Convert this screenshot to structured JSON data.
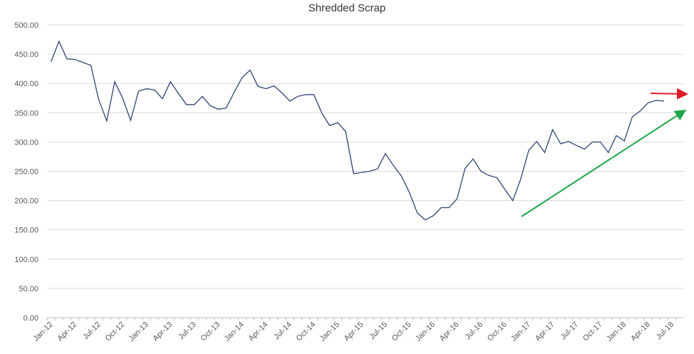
{
  "chart_data": {
    "type": "line",
    "title": "Shredded Scrap",
    "categories": [
      "Jan-12",
      null,
      null,
      "Apr-12",
      null,
      null,
      "Jul-12",
      null,
      null,
      "Oct-12",
      null,
      null,
      "Jan-13",
      null,
      null,
      "Apr-13",
      null,
      null,
      "Jul-13",
      null,
      null,
      "Oct-13",
      null,
      null,
      "Jan-14",
      null,
      null,
      "Apr-14",
      null,
      null,
      "Jul-14",
      null,
      null,
      "Oct-14",
      null,
      null,
      "Jan-15",
      null,
      null,
      "Apr-15",
      null,
      null,
      "Jul-15",
      null,
      null,
      "Oct-15",
      null,
      null,
      "Jan-16",
      null,
      null,
      "Apr-16",
      null,
      null,
      "Jul-16",
      null,
      null,
      "Oct-16",
      null,
      null,
      "Jan-17",
      null,
      null,
      "Apr-17",
      null,
      null,
      "Jul-17",
      null,
      null,
      "Oct-17",
      null,
      null,
      "Jan-18",
      null,
      null,
      "Apr-18",
      null,
      null,
      "Jul-18",
      null
    ],
    "series": [
      {
        "color": "#2e4473",
        "values": [
          437,
          472,
          442,
          441,
          436,
          431,
          372,
          336,
          403,
          375,
          337,
          387,
          391,
          389,
          374,
          403,
          383,
          364,
          364,
          378,
          362,
          356,
          358,
          385,
          410,
          423,
          395,
          391,
          396,
          384,
          370,
          378,
          381,
          381,
          350,
          328,
          333,
          318,
          246,
          248,
          250,
          254,
          280,
          260,
          242,
          214,
          179,
          167,
          174,
          188,
          188,
          203,
          255,
          271,
          250,
          243,
          239,
          219,
          200,
          237,
          286,
          301,
          282,
          321,
          297,
          301,
          294,
          288,
          300,
          300,
          282,
          311,
          302,
          343,
          353,
          367,
          371,
          370,
          null,
          null
        ]
      }
    ],
    "ylim": [
      0,
      500
    ],
    "yticks": [
      {
        "value": 0,
        "label": "0.00"
      },
      {
        "value": 50,
        "label": "50.00"
      },
      {
        "value": 100,
        "label": "100.00"
      },
      {
        "value": 150,
        "label": "150.00"
      },
      {
        "value": 200,
        "label": "200.00"
      },
      {
        "value": 250,
        "label": "250.00"
      },
      {
        "value": 300,
        "label": "300.00"
      },
      {
        "value": 350,
        "label": "350.00"
      },
      {
        "value": 400,
        "label": "400.00"
      },
      {
        "value": 450,
        "label": "450.00"
      },
      {
        "value": 500,
        "label": "500.00"
      }
    ],
    "grid": true
  }
}
